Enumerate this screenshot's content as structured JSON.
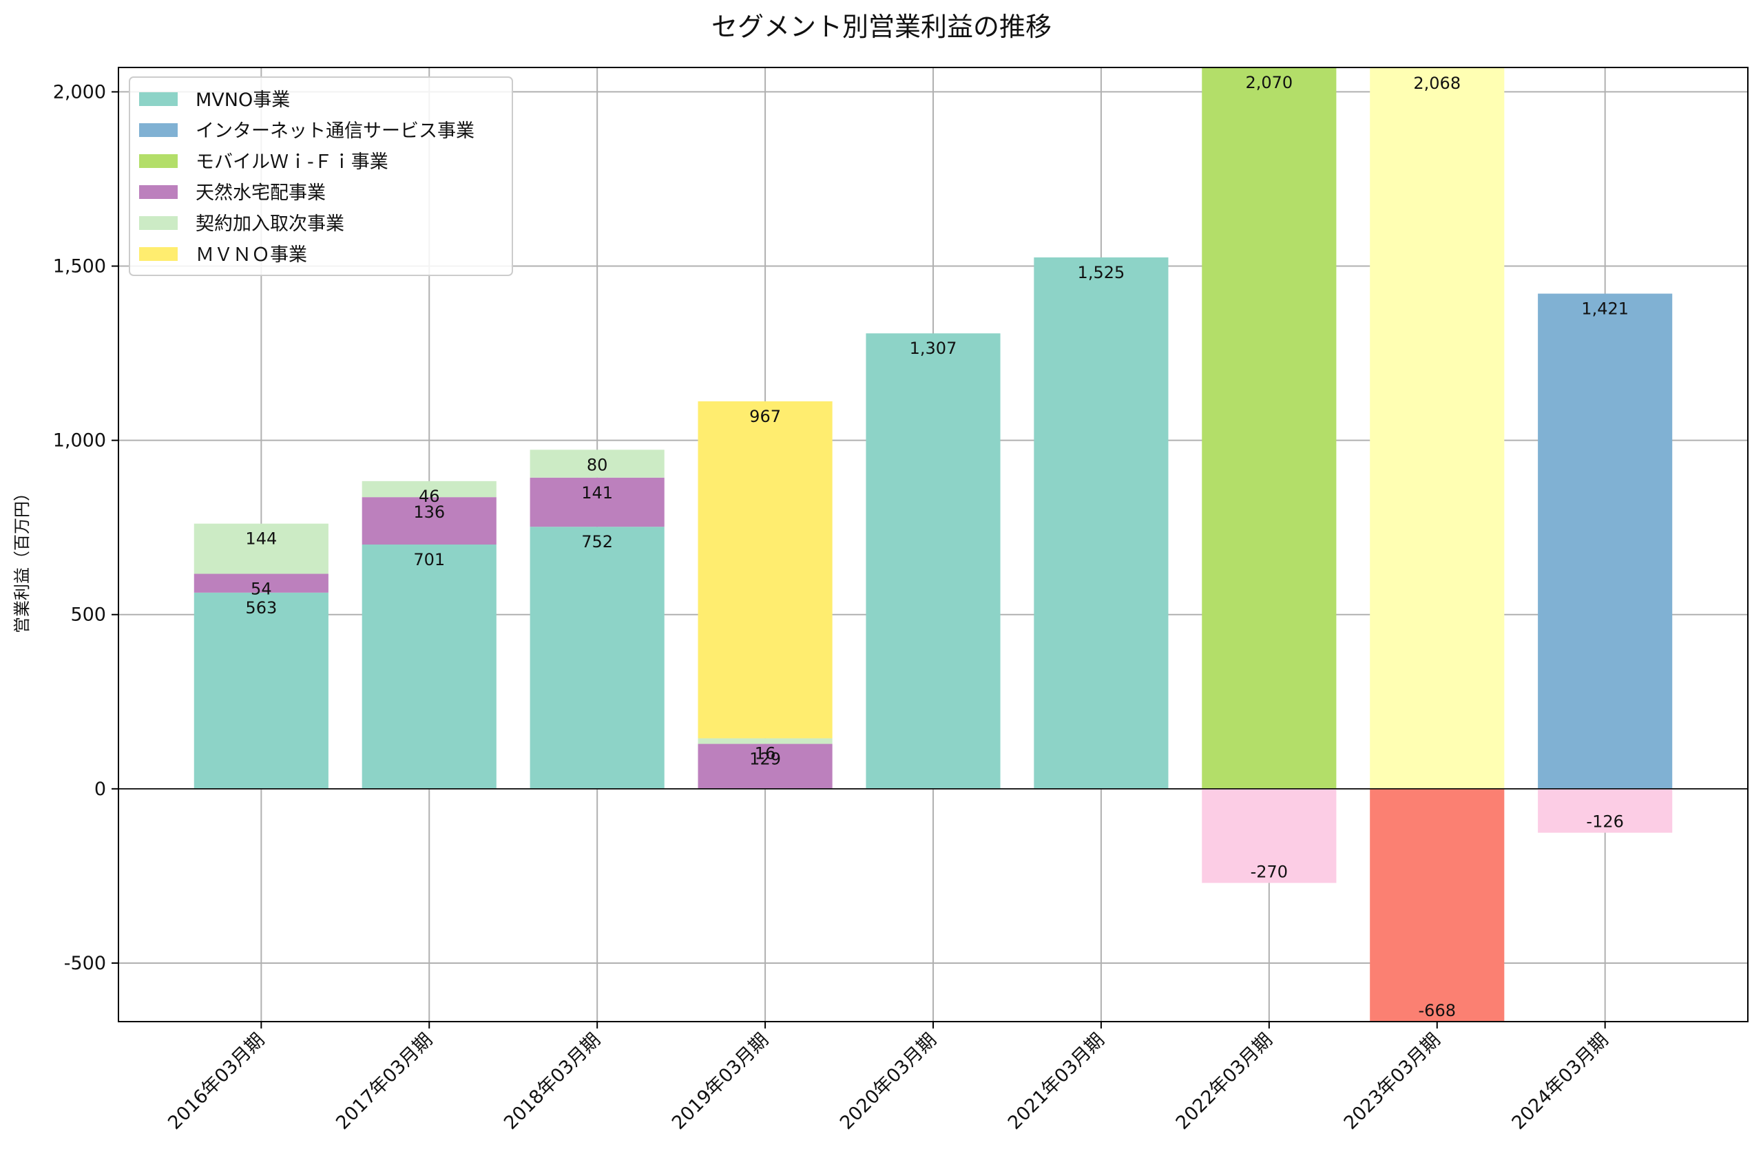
{
  "chart_data": {
    "type": "bar",
    "stacked": true,
    "title": "セグメント別営業利益の推移",
    "xlabel": "",
    "ylabel": "営業利益（百万円）",
    "ylim": [
      -668,
      2070
    ],
    "yticks": [
      -500,
      0,
      500,
      1000,
      1500,
      2000
    ],
    "ytick_labels": [
      "-500",
      "0",
      "500",
      "1,000",
      "1,500",
      "2,000"
    ],
    "grid": true,
    "legend_position": "top-left",
    "categories": [
      "2016年03月期",
      "2017年03月期",
      "2018年03月期",
      "2019年03月期",
      "2020年03月期",
      "2021年03月期",
      "2022年03月期",
      "2023年03月期",
      "2024年03月期"
    ],
    "series": [
      {
        "name": "MVNO事業",
        "color": "#8dd3c7",
        "values": [
          563,
          701,
          752,
          null,
          1307,
          1525,
          null,
          null,
          null
        ],
        "labels": [
          "563",
          "701",
          "752",
          "",
          "1,307",
          "1,525",
          "",
          "",
          ""
        ]
      },
      {
        "name": "インターネット通信サービス事業",
        "color": "#80b1d3",
        "values": [
          null,
          null,
          null,
          null,
          null,
          null,
          null,
          null,
          1421
        ],
        "labels": [
          "",
          "",
          "",
          "",
          "",
          "",
          "",
          "",
          "1,421"
        ]
      },
      {
        "name": "モバイルＷｉ-Ｆｉ事業",
        "color": "#b3de69",
        "values": [
          null,
          null,
          null,
          null,
          null,
          null,
          2070,
          null,
          null
        ],
        "labels": [
          "",
          "",
          "",
          "",
          "",
          "",
          "2,070",
          "",
          ""
        ]
      },
      {
        "name": "天然水宅配事業",
        "color": "#bc80bd",
        "values": [
          54,
          136,
          141,
          129,
          null,
          null,
          null,
          null,
          null
        ],
        "labels": [
          "54",
          "136",
          "141",
          "129",
          "",
          "",
          "",
          "",
          ""
        ]
      },
      {
        "name": "契約加入取次事業",
        "color": "#ccebc5",
        "values": [
          144,
          46,
          80,
          16,
          null,
          null,
          null,
          null,
          null
        ],
        "labels": [
          "144",
          "46",
          "80",
          "16",
          "",
          "",
          "",
          "",
          ""
        ]
      },
      {
        "name": "ＭＶＮＯ事業",
        "color": "#ffed6f",
        "values": [
          null,
          null,
          null,
          967,
          null,
          null,
          null,
          null,
          null
        ],
        "labels": [
          "",
          "",
          "",
          "967",
          "",
          "",
          "",
          "",
          ""
        ]
      },
      {
        "name": "",
        "color": "#ffffb3",
        "values": [
          null,
          null,
          null,
          null,
          null,
          null,
          null,
          2068,
          null
        ],
        "labels": [
          "",
          "",
          "",
          "",
          "",
          "",
          "",
          "2,068",
          ""
        ]
      },
      {
        "name": "",
        "color": "#fccde5",
        "values": [
          null,
          null,
          null,
          null,
          null,
          null,
          -270,
          null,
          -126
        ],
        "labels": [
          "",
          "",
          "",
          "",
          "",
          "",
          "-270",
          "",
          "-126"
        ]
      },
      {
        "name": "",
        "color": "#fb8072",
        "values": [
          null,
          null,
          null,
          null,
          null,
          null,
          null,
          -668,
          null
        ],
        "labels": [
          "",
          "",
          "",
          "",
          "",
          "",
          "",
          "-668",
          ""
        ]
      }
    ]
  }
}
